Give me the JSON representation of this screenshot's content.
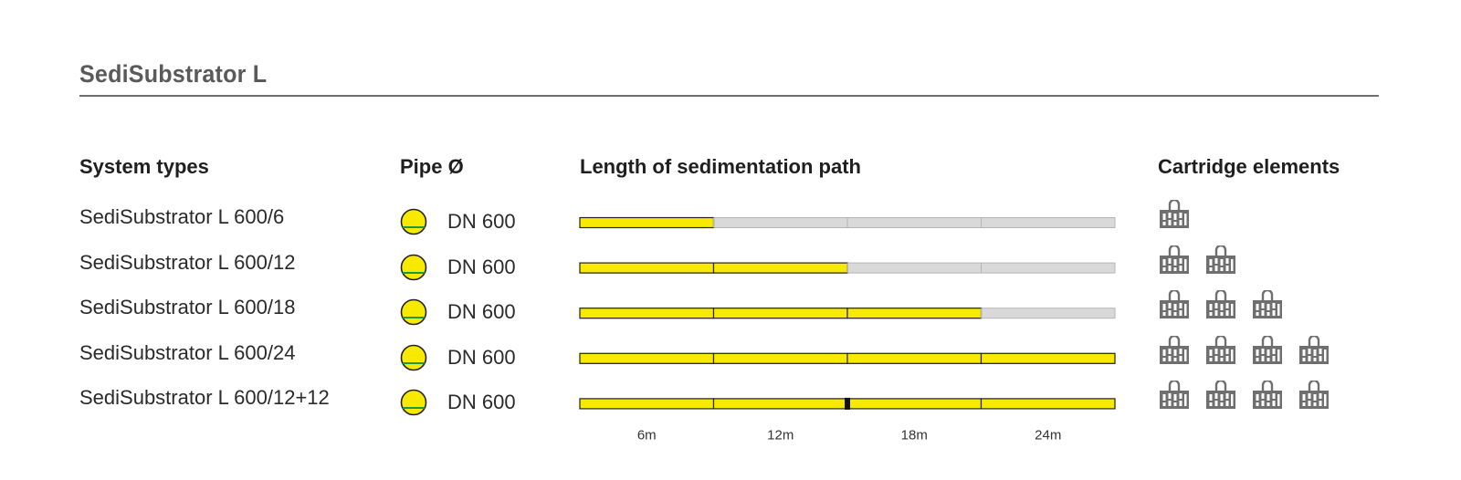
{
  "title": "SediSubstrator L",
  "headers": {
    "system_types": "System types",
    "pipe": "Pipe Ø",
    "length": "Length of sedimentation path",
    "cartridge": "Cartridge elements"
  },
  "colors": {
    "fill": "#f7ea00",
    "empty": "#d9d9d9",
    "outline": "#222222",
    "pipe_line": "#1a9a3a",
    "icon": "#6f6f6f"
  },
  "chart_data": {
    "type": "bar",
    "title": "Length of sedimentation path",
    "xlim": [
      0,
      24
    ],
    "x_tick_labels": [
      "6m",
      "12m",
      "18m",
      "24m"
    ],
    "segment_length_m": 6,
    "categories": [
      "SediSubstrator L 600/6",
      "SediSubstrator L 600/12",
      "SediSubstrator L 600/18",
      "SediSubstrator L 600/24",
      "SediSubstrator L 600/12+12"
    ],
    "values": [
      6,
      12,
      18,
      24,
      24
    ],
    "pipe_diameter": [
      "DN 600",
      "DN 600",
      "DN 600",
      "DN 600",
      "DN 600"
    ],
    "cartridge_elements": [
      1,
      2,
      3,
      4,
      4
    ],
    "split_marker_m": [
      null,
      null,
      null,
      null,
      12
    ]
  }
}
